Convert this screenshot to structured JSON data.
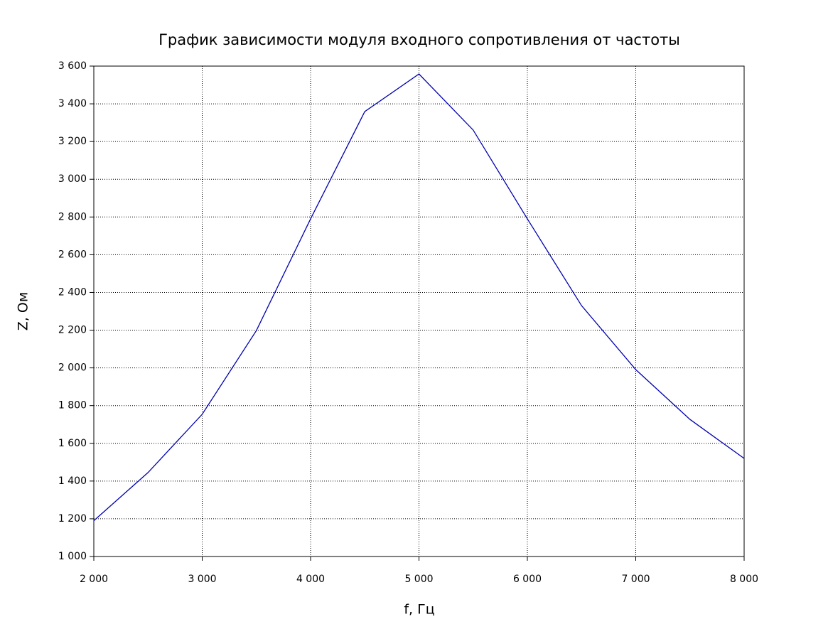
{
  "chart_data": {
    "type": "line",
    "title": "График зависимости модуля входного сопротивления от частоты",
    "x_label": "f, Гц",
    "y_label": "Z, Ом",
    "x": [
      2000,
      2500,
      3000,
      3500,
      4000,
      4500,
      5000,
      5500,
      6000,
      6500,
      7000,
      7500,
      8000
    ],
    "series": [
      {
        "name": "Z",
        "color": "#0000b0",
        "values": [
          1190,
          1445,
          1754,
          2198,
          2790,
          3359,
          3558,
          3261,
          2790,
          2330,
          1991,
          1727,
          1520
        ]
      }
    ],
    "xlim": [
      2000,
      8000
    ],
    "xticks": [
      {
        "value": 2000,
        "label": "2 000"
      },
      {
        "value": 3000,
        "label": "3 000"
      },
      {
        "value": 4000,
        "label": "4 000"
      },
      {
        "value": 5000,
        "label": "5 000"
      },
      {
        "value": 6000,
        "label": "6 000"
      },
      {
        "value": 7000,
        "label": "7 000"
      },
      {
        "value": 8000,
        "label": "8 000"
      }
    ],
    "ylim": [
      1000,
      3600
    ],
    "yticks": [
      {
        "value": 1000,
        "label": "1 000"
      },
      {
        "value": 1200,
        "label": "1 200"
      },
      {
        "value": 1400,
        "label": "1 400"
      },
      {
        "value": 1600,
        "label": "1 600"
      },
      {
        "value": 1800,
        "label": "1 800"
      },
      {
        "value": 2000,
        "label": "2 000"
      },
      {
        "value": 2200,
        "label": "2 200"
      },
      {
        "value": 2400,
        "label": "2 400"
      },
      {
        "value": 2600,
        "label": "2 600"
      },
      {
        "value": 2800,
        "label": "2 800"
      },
      {
        "value": 3000,
        "label": "3 000"
      },
      {
        "value": 3200,
        "label": "3 200"
      },
      {
        "value": 3400,
        "label": "3 400"
      },
      {
        "value": 3600,
        "label": "3 600"
      }
    ],
    "grid": true
  }
}
